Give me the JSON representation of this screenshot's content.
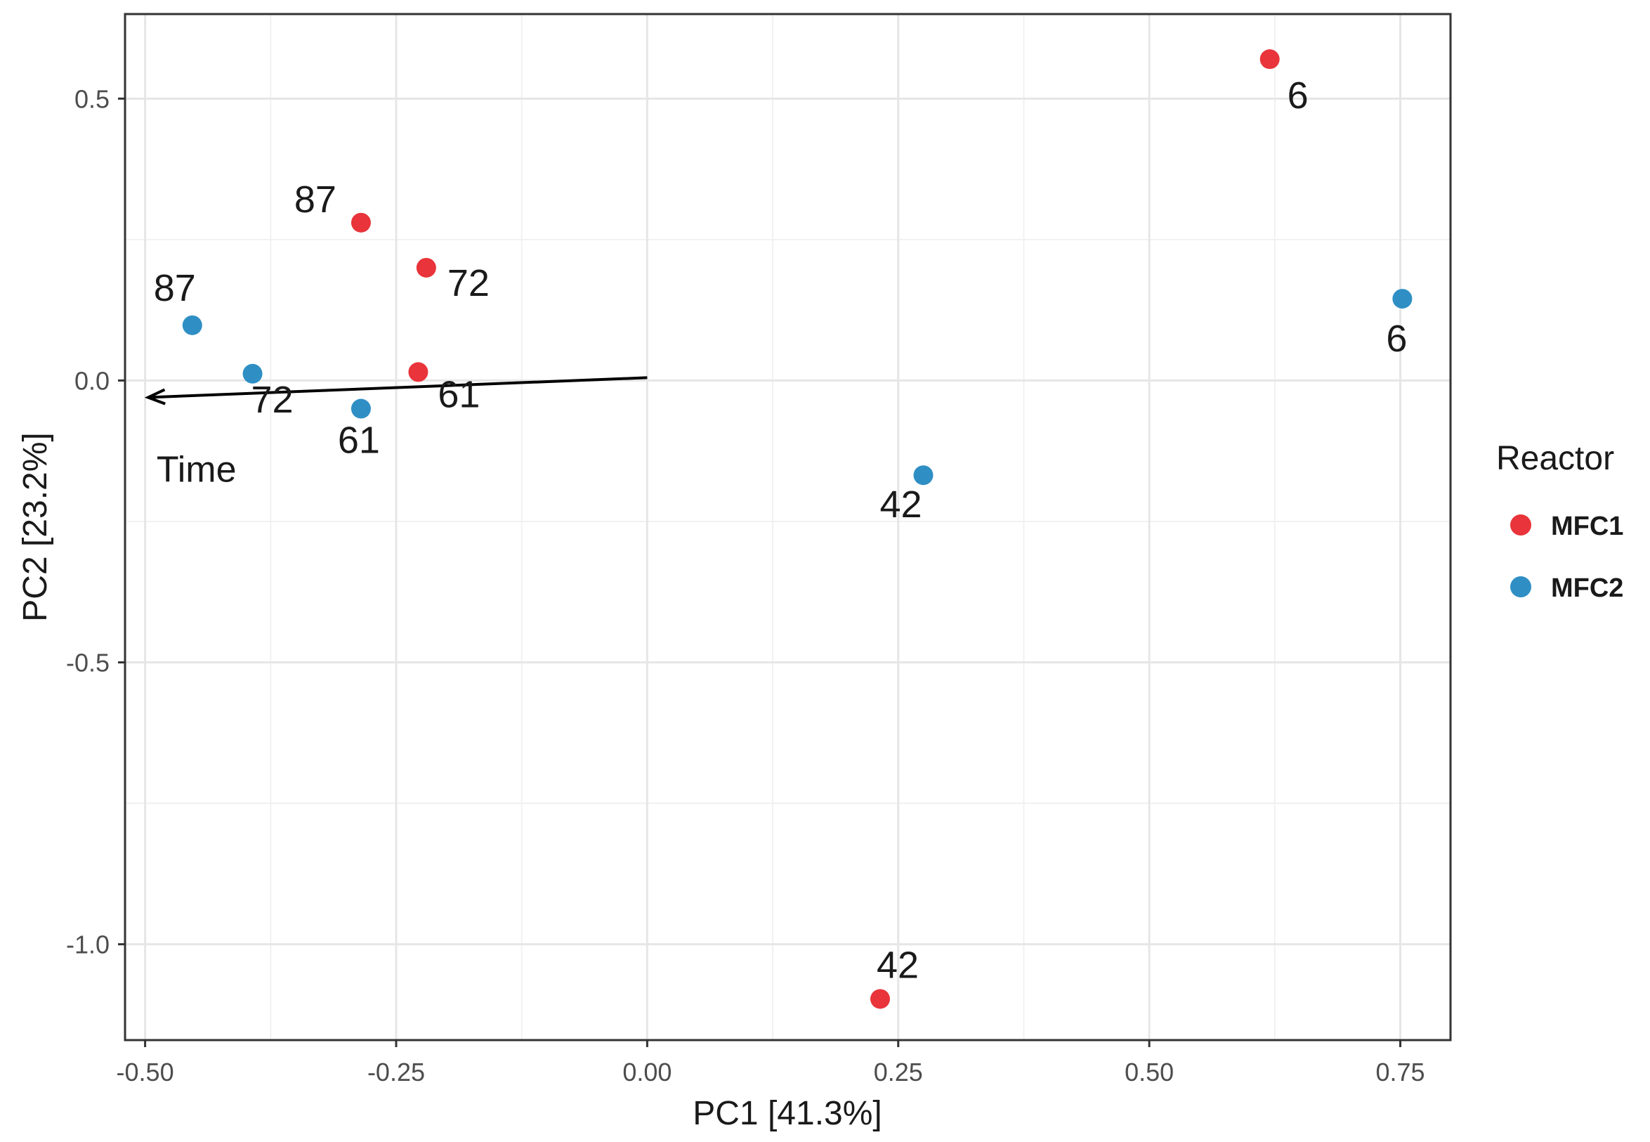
{
  "chart_data": {
    "type": "scatter",
    "xlabel": "PC1 [41.3%]",
    "ylabel": "PC2 [23.2%]",
    "xlim": [
      -0.52,
      0.8
    ],
    "ylim": [
      -1.17,
      0.65
    ],
    "x_ticks": [
      -0.5,
      -0.25,
      0.0,
      0.25,
      0.5,
      0.75
    ],
    "x_tick_labels": [
      "-0.50",
      "-0.25",
      "0.00",
      "0.25",
      "0.50",
      "0.75"
    ],
    "y_ticks": [
      -1.0,
      -0.5,
      0.0,
      0.5
    ],
    "y_tick_labels": [
      "-1.0",
      "-0.5",
      "0.0",
      "0.5"
    ],
    "grid": true,
    "legend": {
      "title": "Reactor",
      "position": "right"
    },
    "series": [
      {
        "name": "MFC1",
        "color": "#e8343a",
        "points": [
          {
            "x": 0.62,
            "y": 0.57,
            "label": "6"
          },
          {
            "x": -0.285,
            "y": 0.28,
            "label": "87"
          },
          {
            "x": -0.22,
            "y": 0.2,
            "label": "72"
          },
          {
            "x": -0.228,
            "y": 0.015,
            "label": "61"
          },
          {
            "x": 0.232,
            "y": -1.097,
            "label": "42"
          }
        ]
      },
      {
        "name": "MFC2",
        "color": "#2f8fc4",
        "points": [
          {
            "x": 0.752,
            "y": 0.145,
            "label": "6"
          },
          {
            "x": -0.453,
            "y": 0.098,
            "label": "87"
          },
          {
            "x": -0.393,
            "y": 0.012,
            "label": "72"
          },
          {
            "x": -0.285,
            "y": -0.05,
            "label": "61"
          },
          {
            "x": 0.275,
            "y": -0.168,
            "label": "42"
          }
        ]
      }
    ],
    "annotations": [
      {
        "type": "arrow",
        "label": "Time",
        "from": [
          0.0,
          0.005
        ],
        "to": [
          -0.497,
          -0.03
        ]
      }
    ]
  }
}
